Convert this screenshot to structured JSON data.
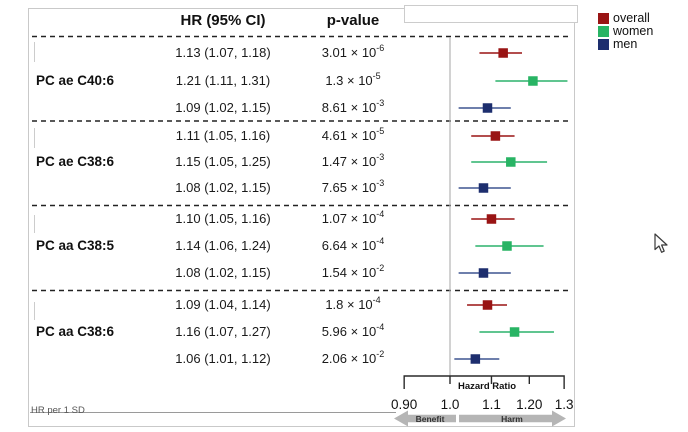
{
  "figure": {
    "header": {
      "hr_col": "HR (95% CI)",
      "p_col": "p-value"
    },
    "footnote": "HR per 1 SD"
  },
  "legend": {
    "items": [
      {
        "label": "overall",
        "color": "#991414"
      },
      {
        "label": "women",
        "color": "#28b464"
      },
      {
        "label": "men",
        "color": "#1d2e6e"
      }
    ]
  },
  "chart_data": {
    "type": "forest",
    "x_scale": "log",
    "x_range": [
      0.9,
      1.3
    ],
    "ref_line": 1.0,
    "axis": {
      "title": "Hazard Ratio",
      "ticks": [
        "0.90",
        "1.0",
        "1.1",
        "1.20",
        "1.3"
      ],
      "tick_values": [
        0.9,
        1.0,
        1.1,
        1.2,
        1.3
      ],
      "benefit_label": "Benefit",
      "harm_label": "Harm"
    },
    "series_order": [
      "overall",
      "women",
      "men"
    ],
    "series_colors": {
      "overall": "#991414",
      "women": "#28b464",
      "men": "#1d2e6e"
    },
    "ci_line_colors": {
      "overall": "#a83434",
      "women": "#49bd80",
      "men": "#5a6da0"
    },
    "groups": [
      {
        "label": "PC ae C40:6",
        "rows": [
          {
            "series": "overall",
            "hr": 1.13,
            "ci_low": 1.07,
            "ci_high": 1.18,
            "hr_text": "1.13 (1.07, 1.18)",
            "p_base": "3.01 × 10",
            "p_exp": "-6"
          },
          {
            "series": "women",
            "hr": 1.21,
            "ci_low": 1.11,
            "ci_high": 1.31,
            "hr_text": "1.21 (1.11, 1.31)",
            "p_base": "1.3 × 10",
            "p_exp": "-5"
          },
          {
            "series": "men",
            "hr": 1.09,
            "ci_low": 1.02,
            "ci_high": 1.15,
            "hr_text": "1.09 (1.02, 1.15)",
            "p_base": "8.61 × 10",
            "p_exp": "-3"
          }
        ]
      },
      {
        "label": "PC ae C38:6",
        "rows": [
          {
            "series": "overall",
            "hr": 1.11,
            "ci_low": 1.05,
            "ci_high": 1.16,
            "hr_text": "1.11 (1.05, 1.16)",
            "p_base": "4.61 × 10",
            "p_exp": "-5"
          },
          {
            "series": "women",
            "hr": 1.15,
            "ci_low": 1.05,
            "ci_high": 1.25,
            "hr_text": "1.15 (1.05, 1.25)",
            "p_base": "1.47 × 10",
            "p_exp": "-3"
          },
          {
            "series": "men",
            "hr": 1.08,
            "ci_low": 1.02,
            "ci_high": 1.15,
            "hr_text": "1.08 (1.02, 1.15)",
            "p_base": "7.65 × 10",
            "p_exp": "-3"
          }
        ]
      },
      {
        "label": "PC aa C38:5",
        "rows": [
          {
            "series": "overall",
            "hr": 1.1,
            "ci_low": 1.05,
            "ci_high": 1.16,
            "hr_text": "1.10 (1.05, 1.16)",
            "p_base": "1.07 × 10",
            "p_exp": "-4"
          },
          {
            "series": "women",
            "hr": 1.14,
            "ci_low": 1.06,
            "ci_high": 1.24,
            "hr_text": "1.14 (1.06, 1.24)",
            "p_base": "6.64 × 10",
            "p_exp": "-4"
          },
          {
            "series": "men",
            "hr": 1.08,
            "ci_low": 1.02,
            "ci_high": 1.15,
            "hr_text": "1.08 (1.02, 1.15)",
            "p_base": "1.54 × 10",
            "p_exp": "-2"
          }
        ]
      },
      {
        "label": "PC aa C38:6",
        "rows": [
          {
            "series": "overall",
            "hr": 1.09,
            "ci_low": 1.04,
            "ci_high": 1.14,
            "hr_text": "1.09 (1.04, 1.14)",
            "p_base": "1.8 × 10",
            "p_exp": "-4"
          },
          {
            "series": "women",
            "hr": 1.16,
            "ci_low": 1.07,
            "ci_high": 1.27,
            "hr_text": "1.16 (1.07, 1.27)",
            "p_base": "5.96 × 10",
            "p_exp": "-4"
          },
          {
            "series": "men",
            "hr": 1.06,
            "ci_low": 1.01,
            "ci_high": 1.12,
            "hr_text": "1.06 (1.01, 1.12)",
            "p_base": "2.06 × 10",
            "p_exp": "-2"
          }
        ]
      }
    ]
  }
}
